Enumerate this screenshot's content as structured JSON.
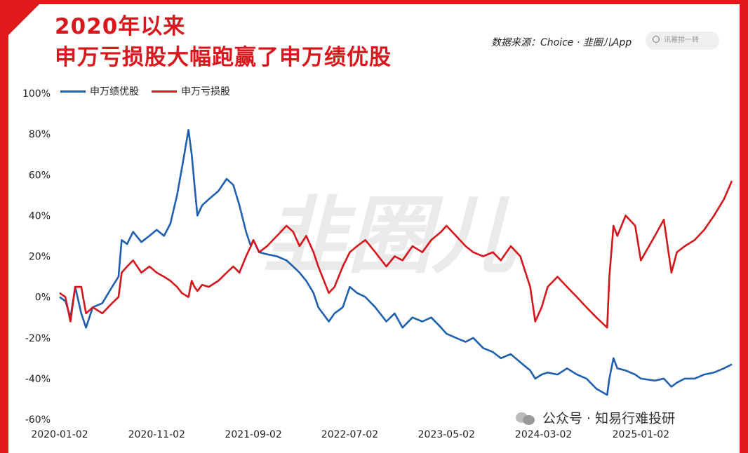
{
  "header": {
    "title_line1": "2020年以来",
    "title_line2": "申万亏损股大幅跑赢了申万绩优股",
    "source": "数据来源：Choice · 韭圈儿App",
    "search_placeholder": "讯幂排一转"
  },
  "watermark": {
    "center_logo_text": "韭圈儿",
    "footer_text": "公众号 · 知易行难投研"
  },
  "colors": {
    "accent": "#e0191b",
    "blue_series": "#1f5fb0",
    "red_series": "#d4161c"
  },
  "chart_data": {
    "type": "line",
    "title": "2020年以来 申万亏损股大幅跑赢了申万绩优股",
    "xlabel": "",
    "ylabel": "",
    "ylim": [
      -60,
      100
    ],
    "yticks": [
      "100%",
      "80%",
      "60%",
      "40%",
      "20%",
      "0%",
      "-20%",
      "-40%",
      "-60%"
    ],
    "ytick_values": [
      100,
      80,
      60,
      40,
      20,
      0,
      -20,
      -40,
      -60
    ],
    "xticks": [
      "2020-01-02",
      "2020-11-02",
      "2021-09-02",
      "2022-07-02",
      "2023-05-02",
      "2024-03-02",
      "2025-01-02"
    ],
    "x_range": [
      "2020-01-02",
      "2025-10-15"
    ],
    "legend_position": "top-left",
    "grid": false,
    "series": [
      {
        "name": "申万绩优股",
        "color": "#1f5fb0",
        "points": [
          [
            "2020-01-02",
            0
          ],
          [
            "2020-01-20",
            -2
          ],
          [
            "2020-02-05",
            -10
          ],
          [
            "2020-02-20",
            5
          ],
          [
            "2020-03-10",
            -8
          ],
          [
            "2020-03-25",
            -15
          ],
          [
            "2020-04-15",
            -5
          ],
          [
            "2020-05-15",
            -3
          ],
          [
            "2020-06-15",
            5
          ],
          [
            "2020-07-05",
            10
          ],
          [
            "2020-07-15",
            28
          ],
          [
            "2020-08-01",
            26
          ],
          [
            "2020-08-20",
            32
          ],
          [
            "2020-09-15",
            27
          ],
          [
            "2020-10-10",
            30
          ],
          [
            "2020-11-02",
            33
          ],
          [
            "2020-11-25",
            30
          ],
          [
            "2020-12-15",
            36
          ],
          [
            "2021-01-05",
            50
          ],
          [
            "2021-01-20",
            63
          ],
          [
            "2021-02-10",
            82
          ],
          [
            "2021-02-20",
            70
          ],
          [
            "2021-03-01",
            55
          ],
          [
            "2021-03-10",
            40
          ],
          [
            "2021-03-25",
            45
          ],
          [
            "2021-04-15",
            48
          ],
          [
            "2021-05-15",
            52
          ],
          [
            "2021-06-10",
            58
          ],
          [
            "2021-07-01",
            55
          ],
          [
            "2021-07-20",
            45
          ],
          [
            "2021-08-10",
            32
          ],
          [
            "2021-08-25",
            25
          ],
          [
            "2021-09-02",
            28
          ],
          [
            "2021-09-20",
            22
          ],
          [
            "2021-10-15",
            21
          ],
          [
            "2021-11-15",
            20
          ],
          [
            "2021-12-15",
            18
          ],
          [
            "2022-01-05",
            15
          ],
          [
            "2022-01-25",
            12
          ],
          [
            "2022-02-15",
            8
          ],
          [
            "2022-03-10",
            2
          ],
          [
            "2022-03-25",
            -5
          ],
          [
            "2022-04-27",
            -12
          ],
          [
            "2022-05-15",
            -8
          ],
          [
            "2022-06-10",
            -5
          ],
          [
            "2022-07-02",
            5
          ],
          [
            "2022-07-25",
            2
          ],
          [
            "2022-08-20",
            0
          ],
          [
            "2022-09-20",
            -5
          ],
          [
            "2022-10-25",
            -12
          ],
          [
            "2022-11-20",
            -8
          ],
          [
            "2022-12-15",
            -15
          ],
          [
            "2023-01-15",
            -10
          ],
          [
            "2023-02-15",
            -12
          ],
          [
            "2023-03-15",
            -10
          ],
          [
            "2023-04-15",
            -15
          ],
          [
            "2023-05-02",
            -18
          ],
          [
            "2023-06-01",
            -20
          ],
          [
            "2023-07-01",
            -22
          ],
          [
            "2023-07-25",
            -20
          ],
          [
            "2023-08-25",
            -25
          ],
          [
            "2023-09-25",
            -27
          ],
          [
            "2023-10-20",
            -30
          ],
          [
            "2023-11-20",
            -28
          ],
          [
            "2023-12-20",
            -32
          ],
          [
            "2024-01-20",
            -36
          ],
          [
            "2024-02-05",
            -40
          ],
          [
            "2024-02-25",
            -38
          ],
          [
            "2024-03-15",
            -37
          ],
          [
            "2024-04-15",
            -38
          ],
          [
            "2024-05-15",
            -35
          ],
          [
            "2024-06-15",
            -38
          ],
          [
            "2024-07-15",
            -40
          ],
          [
            "2024-08-15",
            -45
          ],
          [
            "2024-09-18",
            -48
          ],
          [
            "2024-09-25",
            -40
          ],
          [
            "2024-10-08",
            -30
          ],
          [
            "2024-10-20",
            -35
          ],
          [
            "2024-11-15",
            -36
          ],
          [
            "2024-12-15",
            -38
          ],
          [
            "2025-01-02",
            -40
          ],
          [
            "2025-02-15",
            -41
          ],
          [
            "2025-03-15",
            -40
          ],
          [
            "2025-04-08",
            -44
          ],
          [
            "2025-04-25",
            -42
          ],
          [
            "2025-05-20",
            -40
          ],
          [
            "2025-06-20",
            -40
          ],
          [
            "2025-07-20",
            -38
          ],
          [
            "2025-08-20",
            -37
          ],
          [
            "2025-09-20",
            -35
          ],
          [
            "2025-10-15",
            -33
          ]
        ]
      },
      {
        "name": "申万亏损股",
        "color": "#d4161c",
        "points": [
          [
            "2020-01-02",
            2
          ],
          [
            "2020-01-20",
            0
          ],
          [
            "2020-02-05",
            -12
          ],
          [
            "2020-02-20",
            5
          ],
          [
            "2020-03-10",
            5
          ],
          [
            "2020-03-25",
            -8
          ],
          [
            "2020-04-15",
            -5
          ],
          [
            "2020-05-15",
            -8
          ],
          [
            "2020-06-15",
            -3
          ],
          [
            "2020-07-05",
            0
          ],
          [
            "2020-07-15",
            12
          ],
          [
            "2020-08-01",
            15
          ],
          [
            "2020-08-20",
            18
          ],
          [
            "2020-09-15",
            12
          ],
          [
            "2020-10-10",
            15
          ],
          [
            "2020-11-02",
            12
          ],
          [
            "2020-11-25",
            10
          ],
          [
            "2020-12-15",
            8
          ],
          [
            "2021-01-05",
            5
          ],
          [
            "2021-01-20",
            2
          ],
          [
            "2021-02-10",
            0
          ],
          [
            "2021-02-20",
            8
          ],
          [
            "2021-03-01",
            5
          ],
          [
            "2021-03-10",
            3
          ],
          [
            "2021-03-25",
            6
          ],
          [
            "2021-04-15",
            5
          ],
          [
            "2021-05-15",
            8
          ],
          [
            "2021-06-10",
            12
          ],
          [
            "2021-07-01",
            15
          ],
          [
            "2021-07-20",
            12
          ],
          [
            "2021-08-10",
            20
          ],
          [
            "2021-08-25",
            25
          ],
          [
            "2021-09-02",
            28
          ],
          [
            "2021-09-20",
            22
          ],
          [
            "2021-10-15",
            25
          ],
          [
            "2021-11-15",
            30
          ],
          [
            "2021-12-15",
            35
          ],
          [
            "2022-01-05",
            32
          ],
          [
            "2022-01-25",
            25
          ],
          [
            "2022-02-15",
            30
          ],
          [
            "2022-03-10",
            22
          ],
          [
            "2022-03-25",
            15
          ],
          [
            "2022-04-27",
            2
          ],
          [
            "2022-05-15",
            5
          ],
          [
            "2022-06-10",
            15
          ],
          [
            "2022-07-02",
            22
          ],
          [
            "2022-07-25",
            25
          ],
          [
            "2022-08-20",
            28
          ],
          [
            "2022-09-20",
            22
          ],
          [
            "2022-10-25",
            15
          ],
          [
            "2022-11-20",
            20
          ],
          [
            "2022-12-15",
            18
          ],
          [
            "2023-01-15",
            25
          ],
          [
            "2023-02-15",
            22
          ],
          [
            "2023-03-15",
            28
          ],
          [
            "2023-04-15",
            32
          ],
          [
            "2023-05-02",
            35
          ],
          [
            "2023-06-01",
            30
          ],
          [
            "2023-07-01",
            25
          ],
          [
            "2023-07-25",
            22
          ],
          [
            "2023-08-25",
            20
          ],
          [
            "2023-09-25",
            22
          ],
          [
            "2023-10-20",
            18
          ],
          [
            "2023-11-20",
            25
          ],
          [
            "2023-12-20",
            20
          ],
          [
            "2024-01-20",
            5
          ],
          [
            "2024-02-05",
            -12
          ],
          [
            "2024-02-25",
            -5
          ],
          [
            "2024-03-15",
            5
          ],
          [
            "2024-04-15",
            10
          ],
          [
            "2024-05-15",
            5
          ],
          [
            "2024-06-15",
            0
          ],
          [
            "2024-07-15",
            -5
          ],
          [
            "2024-08-15",
            -10
          ],
          [
            "2024-09-18",
            -15
          ],
          [
            "2024-09-25",
            10
          ],
          [
            "2024-10-08",
            35
          ],
          [
            "2024-10-20",
            30
          ],
          [
            "2024-11-15",
            40
          ],
          [
            "2024-12-15",
            35
          ],
          [
            "2025-01-02",
            18
          ],
          [
            "2025-02-15",
            30
          ],
          [
            "2025-03-15",
            38
          ],
          [
            "2025-04-08",
            12
          ],
          [
            "2025-04-25",
            22
          ],
          [
            "2025-05-20",
            25
          ],
          [
            "2025-06-20",
            28
          ],
          [
            "2025-07-20",
            33
          ],
          [
            "2025-08-20",
            40
          ],
          [
            "2025-09-20",
            48
          ],
          [
            "2025-10-15",
            57
          ]
        ]
      }
    ]
  }
}
